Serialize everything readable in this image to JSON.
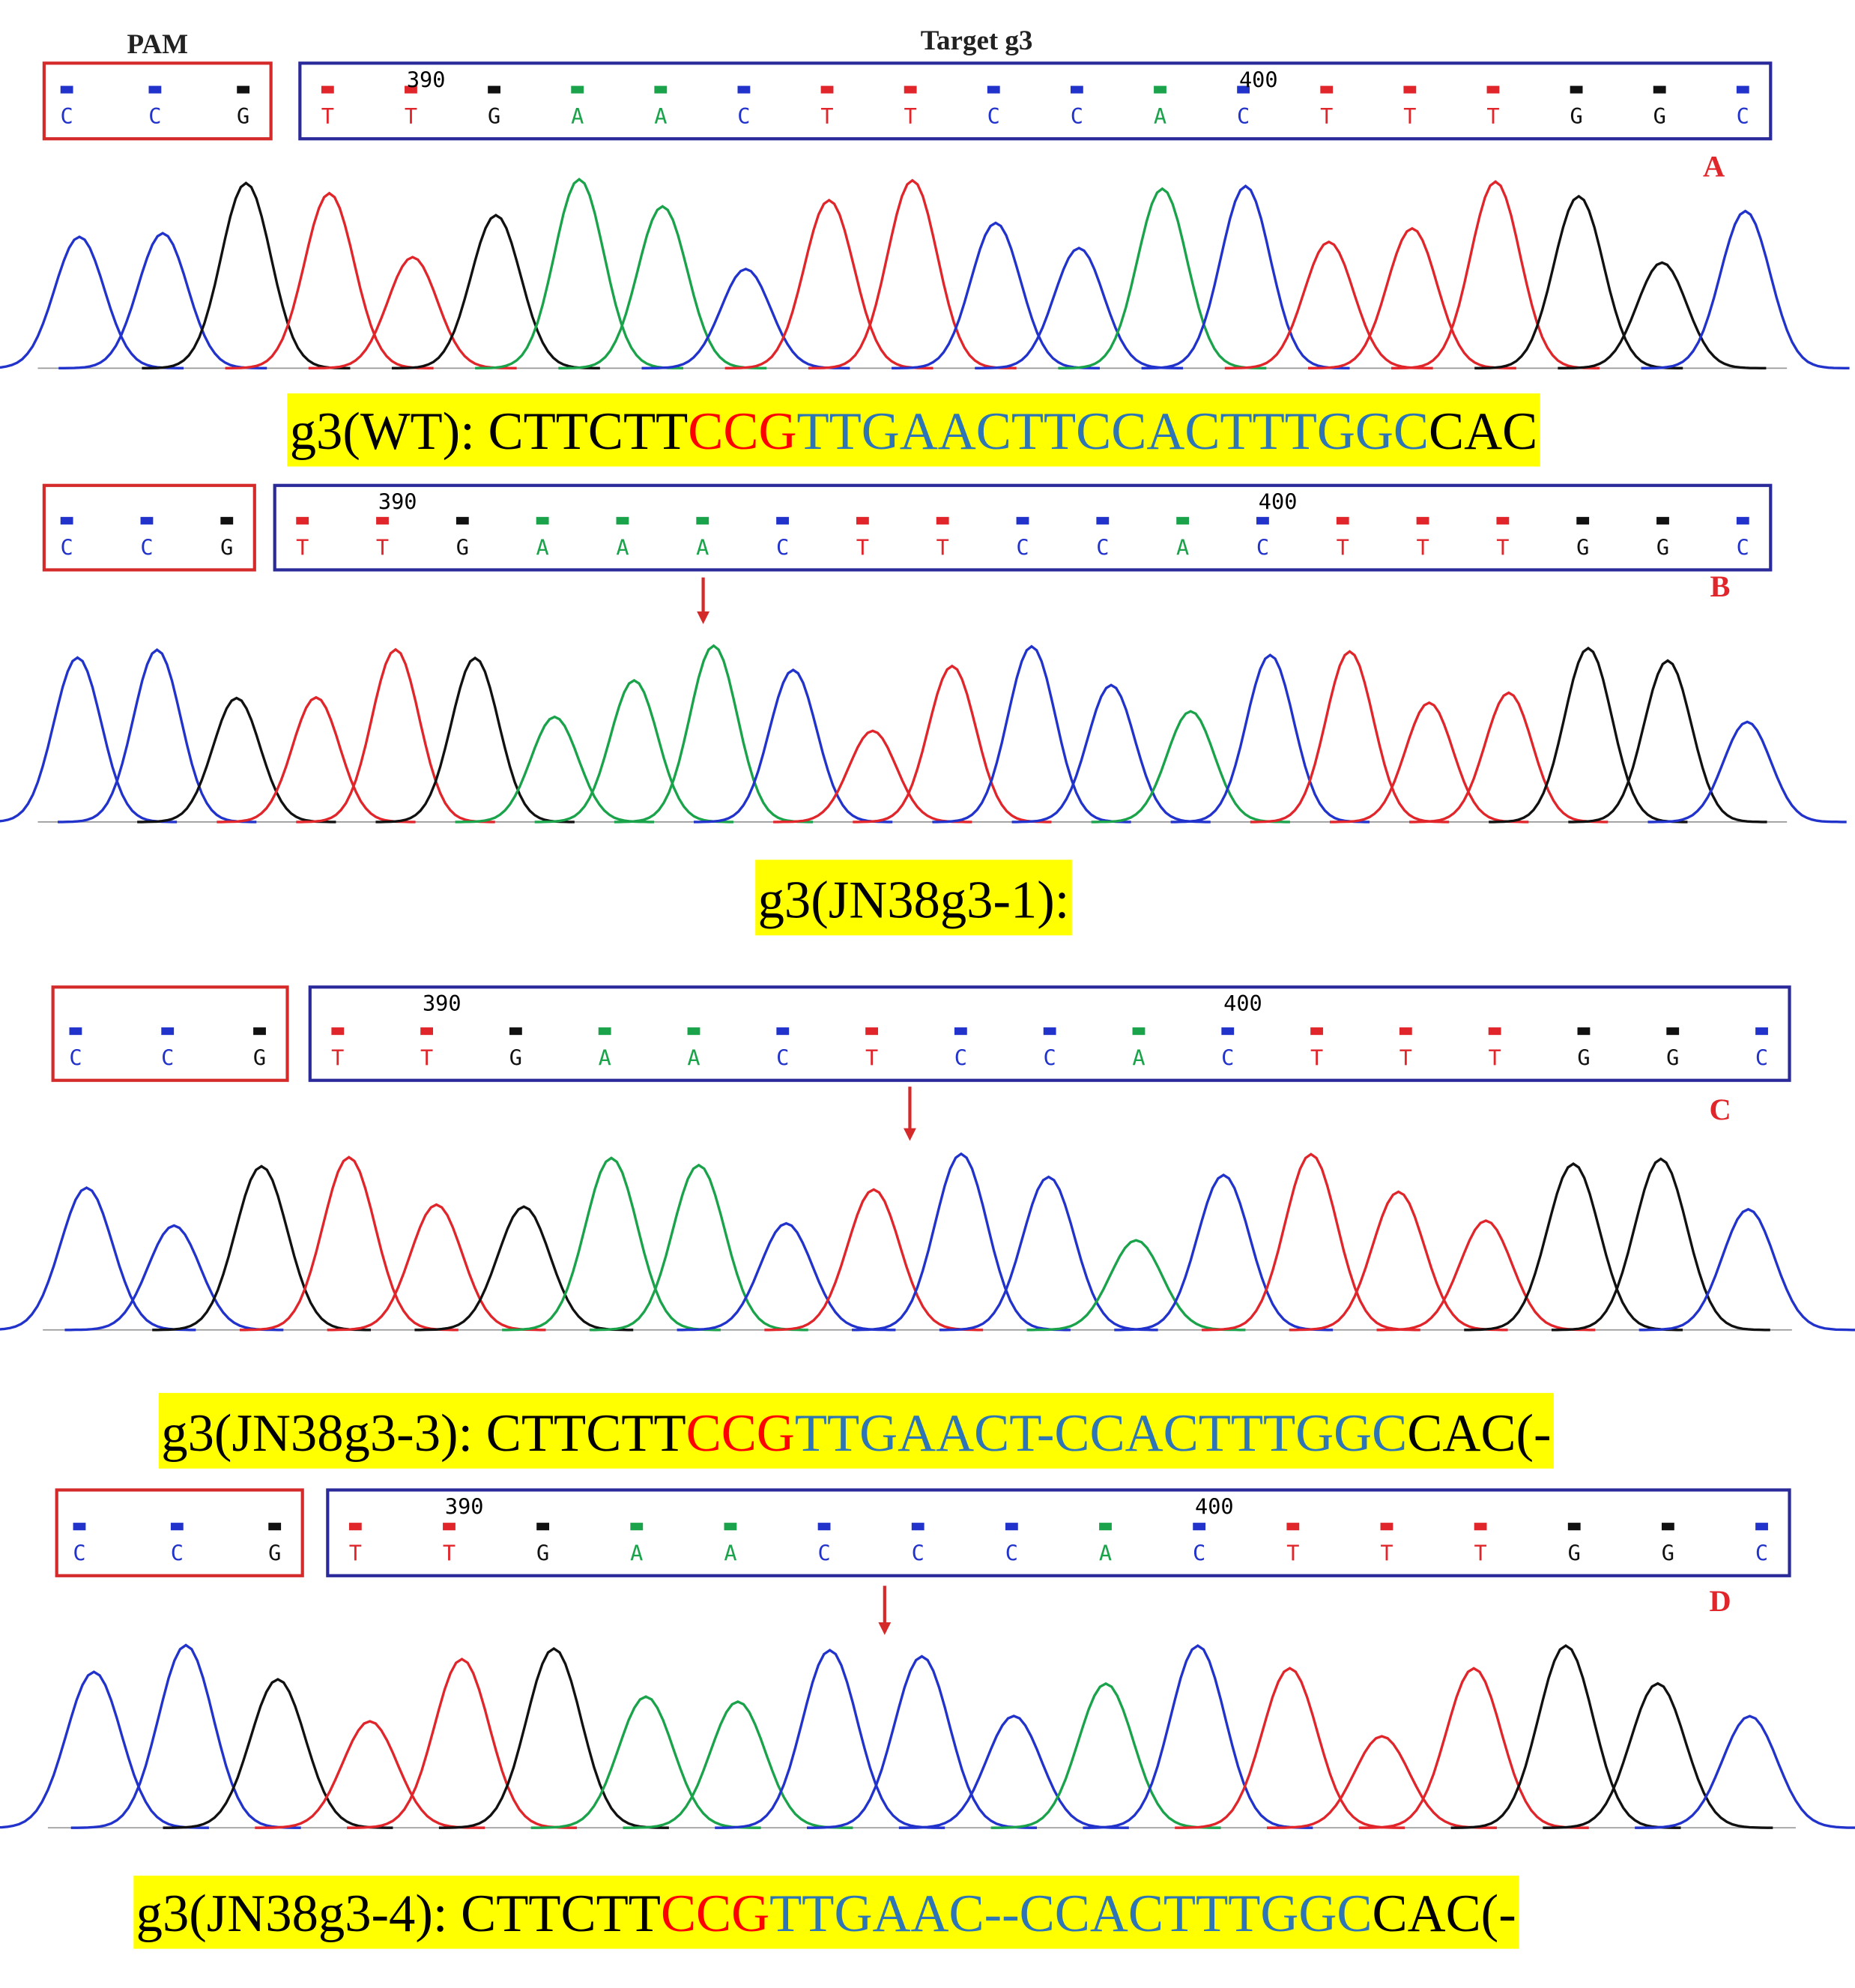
{
  "header": {
    "pam_label": "PAM",
    "target_label": "Target g3"
  },
  "base_colors": {
    "A": "#1aa34a",
    "C": "#2233cc",
    "G": "#111111",
    "T": "#e0262b"
  },
  "panels": [
    {
      "letter": "A",
      "pam_bases": [
        "C",
        "C",
        "G"
      ],
      "target_bases": [
        "T",
        "T",
        "G",
        "A",
        "A",
        "C",
        "T",
        "T",
        "C",
        "C",
        "A",
        "C",
        "T",
        "T",
        "T",
        "G",
        "G",
        "C"
      ],
      "position_labels": [
        "390",
        "400"
      ],
      "caption": [
        {
          "text": "g3(WT): CTTCTT",
          "color": "#000000"
        },
        {
          "text": "CCG",
          "color": "#ff0000"
        },
        {
          "text": "TTGAACTTCCACTTTGGC",
          "color": "#2e75b6"
        },
        {
          "text": "CAC",
          "color": "#000000"
        }
      ]
    },
    {
      "letter": "B",
      "pam_bases": [
        "C",
        "C",
        "G"
      ],
      "target_bases": [
        "T",
        "T",
        "G",
        "A",
        "A",
        "A",
        "C",
        "T",
        "T",
        "C",
        "C",
        "A",
        "C",
        "T",
        "T",
        "T",
        "G",
        "G",
        "C"
      ],
      "position_labels": [
        "390",
        "400"
      ],
      "caption": [
        {
          "text": "g3(JN38g3-1):",
          "color": "#000000"
        }
      ]
    },
    {
      "letter": "C",
      "pam_bases": [
        "C",
        "C",
        "G"
      ],
      "target_bases": [
        "T",
        "T",
        "G",
        "A",
        "A",
        "C",
        "T",
        "C",
        "C",
        "A",
        "C",
        "T",
        "T",
        "T",
        "G",
        "G",
        "C"
      ],
      "position_labels": [
        "390",
        "400"
      ],
      "caption": [
        {
          "text": "g3(JN38g3-3): CTTCTT",
          "color": "#000000"
        },
        {
          "text": "CCG",
          "color": "#ff0000"
        },
        {
          "text": "TTGAACT-CCACTTTGGC",
          "color": "#2e75b6"
        },
        {
          "text": "CAC(-",
          "color": "#000000"
        }
      ]
    },
    {
      "letter": "D",
      "pam_bases": [
        "C",
        "C",
        "G"
      ],
      "target_bases": [
        "T",
        "T",
        "G",
        "A",
        "A",
        "C",
        "C",
        "C",
        "A",
        "C",
        "T",
        "T",
        "T",
        "G",
        "G",
        "C"
      ],
      "position_labels": [
        "390",
        "400"
      ],
      "caption": [
        {
          "text": "g3(JN38g3-4): CTTCTT",
          "color": "#000000"
        },
        {
          "text": "CCG",
          "color": "#ff0000"
        },
        {
          "text": "TTGAAC--CCACTTTGGC",
          "color": "#2e75b6"
        },
        {
          "text": "CAC(-",
          "color": "#000000"
        }
      ]
    }
  ]
}
